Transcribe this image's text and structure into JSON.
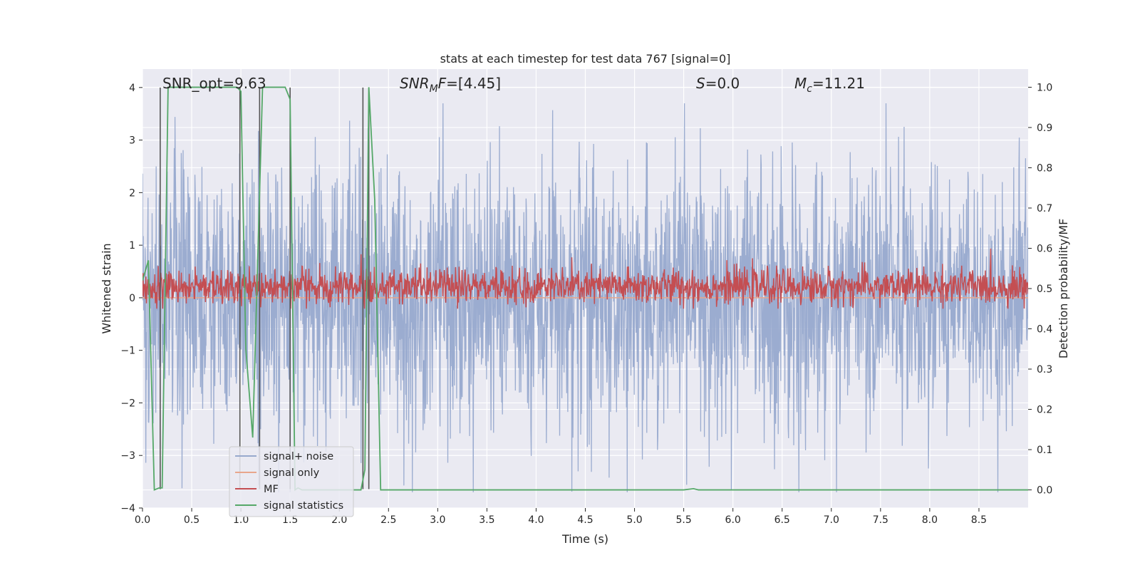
{
  "chart_data": {
    "type": "line",
    "title": "stats at each timestep for test data 767 [signal=0]",
    "xlabel": "Time (s)",
    "ylabel": "Whitened strain",
    "y2label": "Detection probability/MF",
    "xlim": [
      0.0,
      9.0
    ],
    "ylim": [
      -4.0,
      4.35
    ],
    "y2lim": [
      -0.045,
      1.045
    ],
    "xticks": [
      "0.0",
      "0.5",
      "1.0",
      "1.5",
      "2.0",
      "2.5",
      "3.0",
      "3.5",
      "4.0",
      "4.5",
      "5.0",
      "5.5",
      "6.0",
      "6.5",
      "7.0",
      "7.5",
      "8.0",
      "8.5"
    ],
    "yticks": [
      "4",
      "3",
      "2",
      "1",
      "0",
      "−1",
      "−2",
      "−3",
      "−4"
    ],
    "y2ticks": [
      "1.0",
      "0.9",
      "0.8",
      "0.7",
      "0.6",
      "0.5",
      "0.4",
      "0.3",
      "0.2",
      "0.1",
      "0.0"
    ],
    "grid": true,
    "legend_position": "lower-left",
    "annotations": {
      "snr_opt": "SNR_opt=9.63",
      "snr_mf_italic": "SNR",
      "snr_mf_sub": "M",
      "snr_mf_rest_italic": "F",
      "snr_mf_value": "=[4.45]",
      "s_italic": "S",
      "s_value": "=0.0",
      "mc_italic": "M",
      "mc_sub": "c",
      "mc_value": "=11.21"
    },
    "series": [
      {
        "name": "signal+ noise",
        "axis": "left",
        "color": "#97a9cd",
        "description_envelope": {
          "x_range": [
            0.0,
            9.0
          ],
          "typical_range": [
            -1.3,
            1.3
          ],
          "peak_range": [
            -3.7,
            3.7
          ]
        }
      },
      {
        "name": "signal only",
        "axis": "left",
        "color": "#e8a68c",
        "values_constant": 0.0
      },
      {
        "name": "MF",
        "axis": "right",
        "color": "#c44e52",
        "description_envelope": {
          "typical_range": [
            0.46,
            0.55
          ],
          "peak_range": [
            0.45,
            0.61
          ]
        }
      },
      {
        "name": "signal statistics",
        "axis": "right",
        "color": "#55a868",
        "x": [
          0.0,
          0.06,
          0.12,
          0.17,
          0.2,
          0.26,
          0.3,
          0.6,
          0.9,
          0.96,
          1.0,
          1.05,
          1.12,
          1.22,
          1.3,
          1.45,
          1.5,
          1.55,
          1.58,
          1.62,
          2.15,
          2.22,
          2.26,
          2.3,
          2.36,
          2.42,
          2.5,
          3.0,
          4.0,
          5.0,
          5.5,
          5.6,
          5.65,
          5.7,
          6.0,
          7.0,
          8.0,
          9.0
        ],
        "values": [
          0.52,
          0.57,
          0.0,
          0.005,
          0.005,
          1.0,
          1.0,
          1.0,
          1.0,
          1.0,
          0.99,
          0.35,
          0.13,
          1.0,
          1.0,
          1.0,
          0.97,
          0.0,
          0.005,
          0.0,
          0.0,
          0.0,
          0.05,
          1.0,
          0.72,
          0.0,
          0.0,
          0.0,
          0.0,
          0.0,
          0.0,
          0.003,
          0.0,
          0.0,
          0.0,
          0.0,
          0.0,
          0.0
        ]
      }
    ],
    "vertical_markers": {
      "color": "#555555",
      "x": [
        0.18,
        0.99,
        1.19,
        1.5,
        2.24,
        2.3
      ]
    }
  }
}
